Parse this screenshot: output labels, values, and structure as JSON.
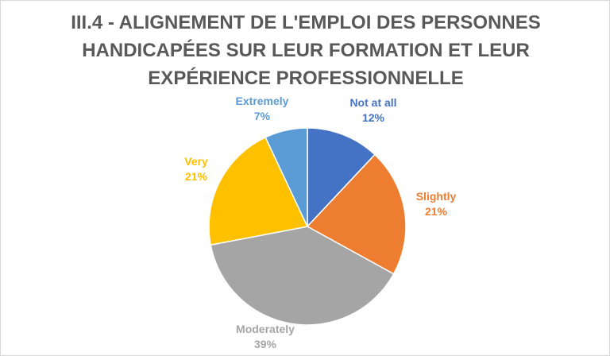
{
  "chart_data": {
    "type": "pie",
    "title_lines": [
      "III.4 - ALIGNEMENT DE L'EMPLOI DES PERSONNES",
      "HANDICAPÉES SUR LEUR FORMATION ET LEUR",
      "EXPÉRIENCE PROFESSIONNELLE"
    ],
    "slices": [
      {
        "label": "Not at all",
        "value": 12,
        "display": "12%",
        "color": "#4472C4"
      },
      {
        "label": "Slightly",
        "value": 21,
        "display": "21%",
        "color": "#ED7D31"
      },
      {
        "label": "Moderately",
        "value": 39,
        "display": "39%",
        "color": "#A5A5A5"
      },
      {
        "label": "Very",
        "value": 21,
        "display": "21%",
        "color": "#FFC000"
      },
      {
        "label": "Extremely",
        "value": 7,
        "display": "7%",
        "color": "#5B9BD5"
      }
    ],
    "start": "12 o'clock, clockwise"
  }
}
